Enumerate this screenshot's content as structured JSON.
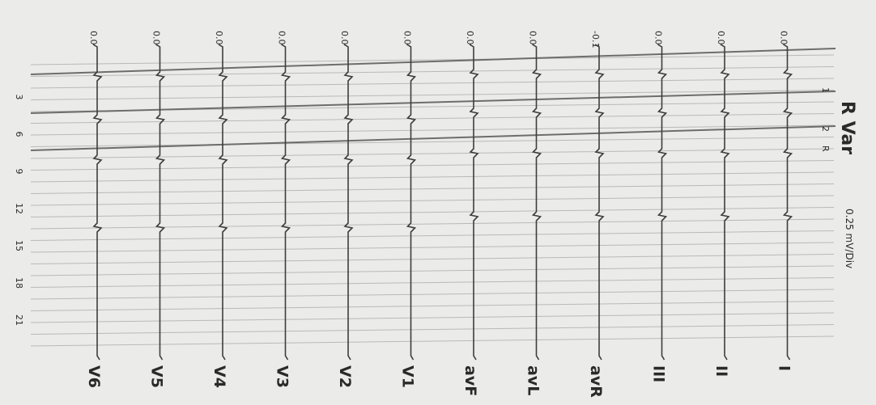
{
  "header": {
    "title": "R Var",
    "scale": "0.25 mV/Div"
  },
  "markers": [
    "1",
    "2",
    "R"
  ],
  "time_ticks": [
    3,
    6,
    9,
    12,
    15,
    18,
    21
  ],
  "leads": [
    {
      "label": "V6",
      "baseline": "0.0"
    },
    {
      "label": "V5",
      "baseline": "0.0"
    },
    {
      "label": "V4",
      "baseline": "0.0"
    },
    {
      "label": "V3",
      "baseline": "0.0"
    },
    {
      "label": "V2",
      "baseline": "0.0"
    },
    {
      "label": "V1",
      "baseline": "0.0"
    },
    {
      "label": "avF",
      "baseline": "0.0"
    },
    {
      "label": "avL",
      "baseline": "0.0"
    },
    {
      "label": "avR",
      "baseline": "-0.1"
    },
    {
      "label": "III",
      "baseline": "0.0"
    },
    {
      "label": "II",
      "baseline": "0.0"
    },
    {
      "label": "I",
      "baseline": "0.0"
    }
  ]
}
